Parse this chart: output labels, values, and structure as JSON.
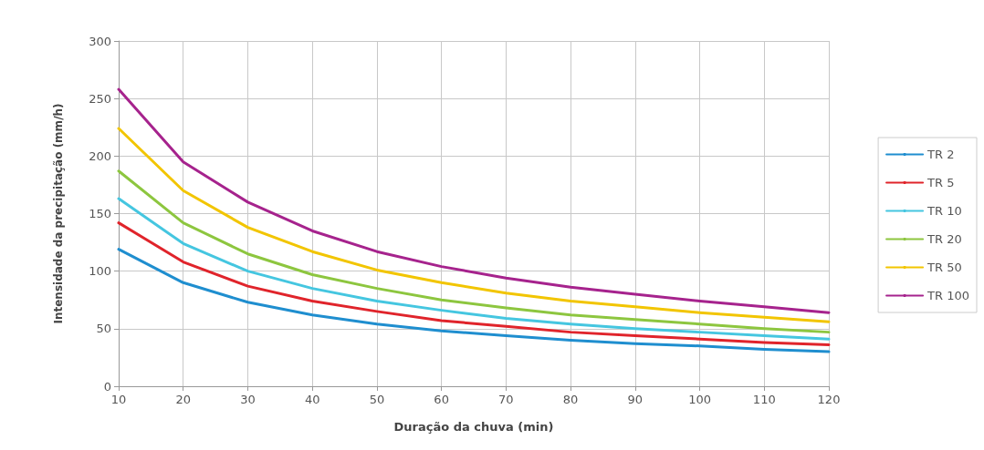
{
  "chart_data": {
    "type": "line",
    "xlabel": "Duração da chuva (min)",
    "ylabel": "Intensidade da precipitação (mm/h)",
    "x": [
      10,
      20,
      30,
      40,
      50,
      60,
      70,
      80,
      90,
      100,
      110,
      120
    ],
    "xlim": [
      10,
      120
    ],
    "xticks": [
      10,
      20,
      30,
      40,
      50,
      60,
      70,
      80,
      90,
      100,
      110,
      120
    ],
    "ylim": [
      0,
      300
    ],
    "yticks": [
      0,
      50,
      100,
      150,
      200,
      250,
      300
    ],
    "grid": true,
    "legend": "right",
    "marker": "none",
    "line_style": "solid",
    "series": [
      {
        "name": "TR 2",
        "color": "#1f8ecf",
        "values": [
          119,
          90,
          73,
          62,
          54,
          48,
          44,
          40,
          37,
          35,
          32,
          30
        ]
      },
      {
        "name": "TR 5",
        "color": "#e0242b",
        "values": [
          142,
          108,
          87,
          74,
          65,
          57,
          52,
          47,
          44,
          41,
          38,
          36
        ]
      },
      {
        "name": "TR 10",
        "color": "#45c6e0",
        "values": [
          163,
          124,
          100,
          85,
          74,
          66,
          59,
          54,
          50,
          47,
          44,
          41
        ]
      },
      {
        "name": "TR 20",
        "color": "#8dc63f",
        "values": [
          187,
          142,
          115,
          97,
          85,
          75,
          68,
          62,
          58,
          54,
          50,
          47
        ]
      },
      {
        "name": "TR 50",
        "color": "#f2c500",
        "values": [
          224,
          170,
          138,
          117,
          101,
          90,
          81,
          74,
          69,
          64,
          60,
          56
        ]
      },
      {
        "name": "TR 100",
        "color": "#a6238d",
        "values": [
          258,
          195,
          160,
          135,
          117,
          104,
          94,
          86,
          80,
          74,
          69,
          64
        ]
      }
    ]
  }
}
